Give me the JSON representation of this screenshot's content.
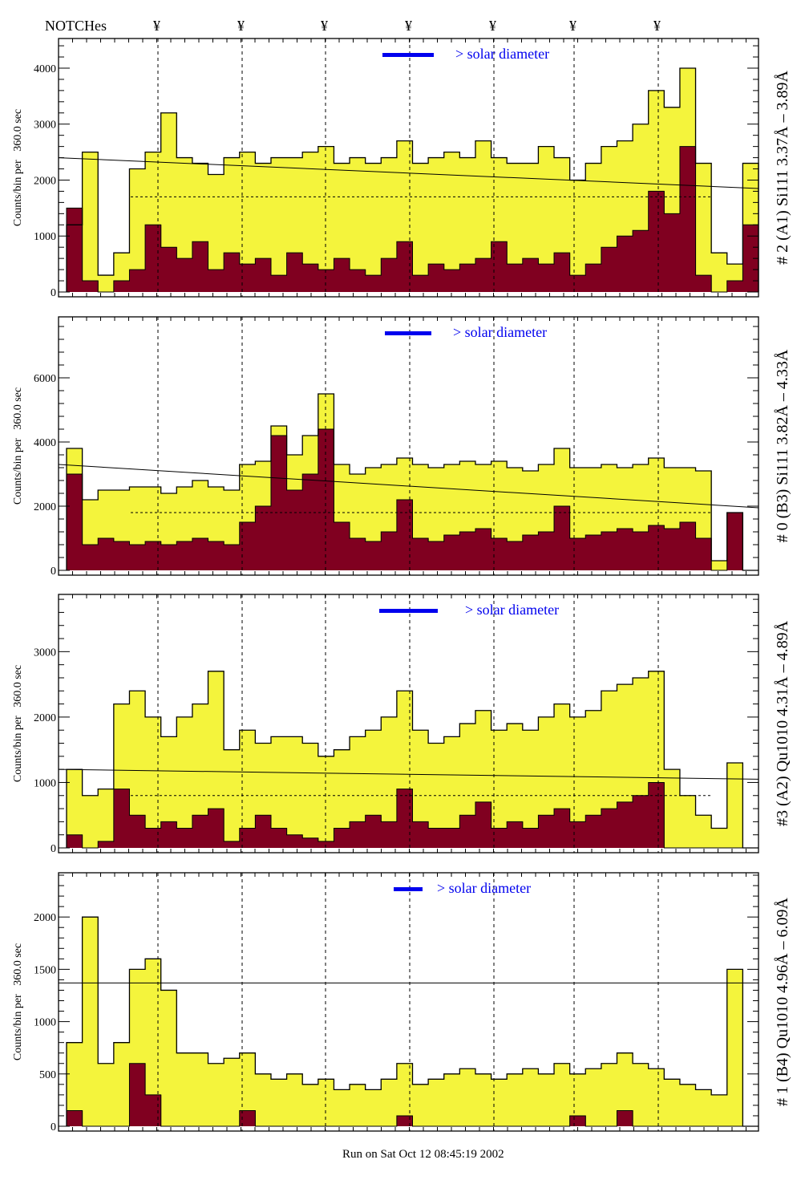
{
  "header": {
    "notches_label": "NOTCHes",
    "notch_symbol": "¥"
  },
  "footer": {
    "run_text": "Run on Sat Oct 12 08:45:19 2002"
  },
  "colors": {
    "total": "#f4f43c",
    "subset": "#800020",
    "legend": "#0000ee"
  },
  "chart_data": [
    {
      "type": "bar",
      "title": "# 2 (A1) Si111  3.37Å – 3.89Å",
      "ylabel": "Counts/bin per   360.0 sec",
      "legend": "> solar diameter",
      "ylim": [
        0,
        4530
      ],
      "yticks": [
        0,
        1000,
        2000,
        3000,
        4000
      ],
      "solid_line": [
        2400,
        1850
      ],
      "dashed_level": 1700,
      "total": [
        1200,
        2500,
        300,
        700,
        2200,
        2500,
        3200,
        2400,
        2300,
        2100,
        2400,
        2500,
        2300,
        2400,
        2400,
        2500,
        2600,
        2300,
        2400,
        2300,
        2400,
        2700,
        2300,
        2400,
        2500,
        2400,
        2700,
        2400,
        2300,
        2300,
        2600,
        2400,
        2000,
        2300,
        2600,
        2700,
        3000,
        3600,
        3300,
        4000,
        2300,
        700,
        500,
        2300
      ],
      "subset": [
        1500,
        200,
        0,
        200,
        400,
        1200,
        800,
        600,
        900,
        400,
        700,
        500,
        600,
        300,
        700,
        500,
        400,
        600,
        400,
        300,
        600,
        900,
        300,
        500,
        400,
        500,
        600,
        900,
        500,
        600,
        500,
        700,
        300,
        500,
        800,
        1000,
        1100,
        1800,
        1400,
        2600,
        300,
        0,
        200,
        1200
      ]
    },
    {
      "type": "bar",
      "title": "# 0 (B3) Si111  3.82Å – 4.33Å",
      "ylabel": "Counts/bin per   360.0 sec",
      "legend": "> solar diameter",
      "ylim": [
        0,
        7900
      ],
      "yticks": [
        0,
        2000,
        4000,
        6000
      ],
      "solid_line": [
        3300,
        1950
      ],
      "dashed_level": 1800,
      "total": [
        3800,
        2200,
        2500,
        2500,
        2600,
        2600,
        2400,
        2600,
        2800,
        2600,
        2500,
        3300,
        3400,
        4500,
        3600,
        4200,
        5500,
        3300,
        3000,
        3200,
        3300,
        3500,
        3300,
        3200,
        3300,
        3400,
        3300,
        3400,
        3200,
        3100,
        3300,
        3800,
        3200,
        3200,
        3300,
        3200,
        3300,
        3500,
        3200,
        3200,
        3100,
        300,
        1800,
        0
      ],
      "subset": [
        3000,
        800,
        1000,
        900,
        800,
        900,
        800,
        900,
        1000,
        900,
        800,
        1500,
        2000,
        4200,
        2500,
        3000,
        4400,
        1500,
        1000,
        900,
        1200,
        2200,
        1000,
        900,
        1100,
        1200,
        1300,
        1000,
        900,
        1100,
        1200,
        2000,
        1000,
        1100,
        1200,
        1300,
        1200,
        1400,
        1300,
        1500,
        1000,
        0,
        1800,
        0
      ]
    },
    {
      "type": "bar",
      "title": "#3 (A2) Qu1010  4.31Å – 4.89Å",
      "ylabel": "Counts/bin per   360.0 sec",
      "legend": "> solar diameter",
      "ylim": [
        0,
        3875
      ],
      "yticks": [
        0,
        1000,
        2000,
        3000
      ],
      "solid_line": [
        1200,
        1050
      ],
      "dashed_level": 800,
      "total": [
        1200,
        800,
        900,
        2200,
        2400,
        2000,
        1700,
        2000,
        2200,
        2700,
        1500,
        1800,
        1600,
        1700,
        1700,
        1600,
        1400,
        1500,
        1700,
        1800,
        2000,
        2400,
        1800,
        1600,
        1700,
        1900,
        2100,
        1800,
        1900,
        1800,
        2000,
        2200,
        2000,
        2100,
        2400,
        2500,
        2600,
        2700,
        1200,
        800,
        500,
        300,
        1300,
        0
      ],
      "subset": [
        200,
        0,
        100,
        900,
        500,
        300,
        400,
        300,
        500,
        600,
        100,
        300,
        500,
        300,
        200,
        150,
        100,
        300,
        400,
        500,
        400,
        900,
        400,
        300,
        300,
        500,
        700,
        300,
        400,
        300,
        500,
        600,
        400,
        500,
        600,
        700,
        800,
        1000,
        0,
        0,
        0,
        0,
        0,
        0
      ]
    },
    {
      "type": "bar",
      "title": "# 1 (B4) Qu1010 4.96Å – 6.09Å",
      "ylabel": "Counts/bin per   360.0 sec",
      "legend": "> solar diameter",
      "ylim": [
        0,
        2423
      ],
      "yticks": [
        0,
        500,
        1000,
        1500,
        2000
      ],
      "solid_line": [
        1370,
        1370
      ],
      "dashed_level": 0,
      "total": [
        800,
        2000,
        600,
        800,
        1500,
        1600,
        1300,
        700,
        700,
        600,
        650,
        700,
        500,
        450,
        500,
        400,
        450,
        350,
        400,
        350,
        450,
        600,
        400,
        450,
        500,
        550,
        500,
        450,
        500,
        550,
        500,
        600,
        500,
        550,
        600,
        700,
        600,
        550,
        450,
        400,
        350,
        300,
        1500,
        0
      ],
      "subset": [
        150,
        0,
        0,
        0,
        600,
        300,
        0,
        0,
        0,
        0,
        0,
        150,
        0,
        0,
        0,
        0,
        0,
        0,
        0,
        0,
        0,
        100,
        0,
        0,
        0,
        0,
        0,
        0,
        0,
        0,
        0,
        0,
        100,
        0,
        0,
        150,
        0,
        0,
        0,
        0,
        0,
        0,
        0,
        0
      ]
    }
  ]
}
